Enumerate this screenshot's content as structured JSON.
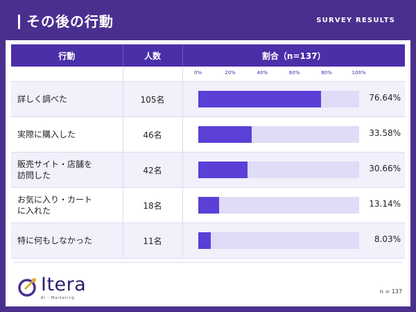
{
  "header": {
    "title": "その後の行動",
    "label": "SURVEY RESULTS"
  },
  "table": {
    "columns": [
      "行動",
      "人数",
      "割合（n=137）"
    ],
    "scale_ticks": [
      "0%",
      "20%",
      "40%",
      "60%",
      "80%",
      "100%"
    ],
    "rows": [
      {
        "action_line1": "詳しく調べた",
        "action_line2": "",
        "count": "105名",
        "percent_label": "76.64%"
      },
      {
        "action_line1": "実際に購入した",
        "action_line2": "",
        "count": "46名",
        "percent_label": "33.58%"
      },
      {
        "action_line1": "販売サイト・店舗を",
        "action_line2": "訪問した",
        "count": "42名",
        "percent_label": "30.66%"
      },
      {
        "action_line1": "お気に入り・カート",
        "action_line2": "に入れた",
        "count": "18名",
        "percent_label": "13.14%"
      },
      {
        "action_line1": "特に何もしなかった",
        "action_line2": "",
        "count": "11名",
        "percent_label": "8.03%"
      }
    ]
  },
  "chart_data": {
    "type": "bar",
    "categories": [
      "詳しく調べた",
      "実際に購入した",
      "販売サイト・店舗を訪問した",
      "お気に入り・カートに入れた",
      "特に何もしなかった"
    ],
    "values": [
      76.64,
      33.58,
      30.66,
      13.14,
      8.03
    ],
    "title": "割合（n=137）",
    "xlim": [
      0,
      100
    ],
    "orientation": "horizontal"
  },
  "footer": {
    "logo_text": "Itera",
    "logo_subtitle": "AI - Marketing",
    "note": "n = 137"
  },
  "colors": {
    "header_bg": "#4b2f8f",
    "table_header": "#4a2fa8",
    "bar_fill": "#5b3fd6",
    "bar_track": "#dedcf6",
    "row_alt": "#f1f0fb",
    "logo_gold": "#e0a82e"
  }
}
